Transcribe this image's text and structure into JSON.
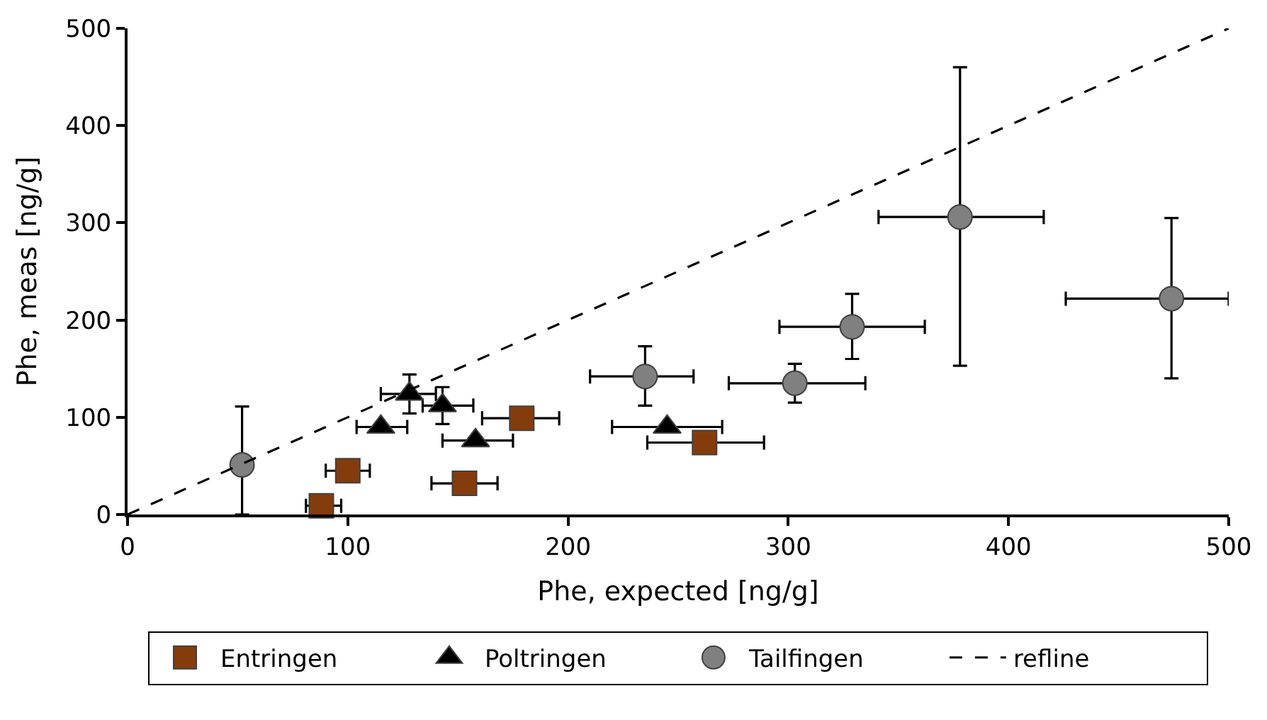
{
  "chart_data": {
    "type": "scatter",
    "xlabel": "Phe, expected [ng/g]",
    "ylabel": "Phe, meas [ng/g]",
    "xlim": [
      0,
      500
    ],
    "xticks": [
      0,
      100,
      200,
      300,
      400,
      500
    ],
    "ylim": [
      0,
      500
    ],
    "yticks": [
      0,
      100,
      200,
      300,
      400,
      500
    ],
    "legend": "bottom",
    "series": [
      {
        "name": "Entringen",
        "color": "#843c0c",
        "marker": "square",
        "x": [
          88,
          100,
          153,
          179,
          262
        ],
        "values": [
          9,
          45,
          32,
          99,
          74
        ],
        "xerrors": [
          [
            81,
            97
          ],
          [
            90,
            110
          ],
          [
            138,
            168
          ],
          [
            161,
            196
          ],
          [
            236,
            289
          ]
        ]
      },
      {
        "name": "Poltringen",
        "color": "#000000",
        "marker": "triangle",
        "x": [
          115,
          128,
          143,
          158,
          245
        ],
        "values": [
          90,
          124,
          112,
          76,
          90
        ],
        "errors": [
          null,
          [
            104,
            144
          ],
          [
            93,
            131
          ],
          null,
          null
        ],
        "xerrors": [
          [
            104,
            127
          ],
          [
            115,
            140
          ],
          [
            134,
            157
          ],
          [
            143,
            175
          ],
          [
            220,
            270
          ]
        ]
      },
      {
        "name": "Tailfingen",
        "color": "#808080",
        "marker": "circle",
        "x": [
          52,
          235,
          303,
          329,
          378,
          474
        ],
        "values": [
          51,
          142,
          135,
          193,
          306,
          222
        ],
        "errors": [
          [
            0,
            111
          ],
          [
            112,
            173
          ],
          [
            115,
            155
          ],
          [
            160,
            227
          ],
          [
            153,
            460
          ],
          [
            140,
            305
          ]
        ],
        "xerrors": [
          null,
          [
            210,
            257
          ],
          [
            273,
            335
          ],
          [
            296,
            362
          ],
          [
            341,
            416
          ],
          [
            426,
            500
          ]
        ]
      },
      {
        "name": "refline",
        "type": "line",
        "color": "#000000",
        "line_style": "dashed",
        "marker": "none",
        "x": [
          0,
          500
        ],
        "values": [
          0,
          500
        ]
      }
    ]
  }
}
